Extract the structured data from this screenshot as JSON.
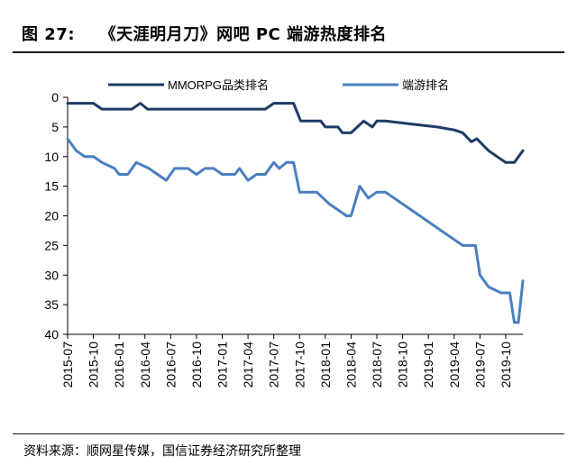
{
  "header": {
    "figure_label": "图 27:",
    "title": "《天涯明月刀》网吧 PC 端游热度排名"
  },
  "footer": {
    "source": "资料来源：顺网星传媒，国信证券经济研究所整理"
  },
  "chart_data": {
    "type": "line",
    "title": "",
    "xlabel": "",
    "ylabel": "",
    "y_inverted": true,
    "ylim": [
      0,
      40
    ],
    "yticks": [
      0,
      5,
      10,
      15,
      20,
      25,
      30,
      35,
      40
    ],
    "x_tick_labels": [
      "2015-07",
      "2015-10",
      "2016-01",
      "2016-04",
      "2016-07",
      "2016-10",
      "2017-01",
      "2017-04",
      "2017-07",
      "2017-10",
      "2018-01",
      "2018-04",
      "2018-07",
      "2018-10",
      "2019-01",
      "2019-04",
      "2019-07",
      "2019-10"
    ],
    "x_range_months": [
      "2015-07",
      "2019-12"
    ],
    "legend_position": "top",
    "grid": false,
    "series": [
      {
        "name": "MMORPG品类排名",
        "color": "#1f3b64",
        "points": [
          [
            "2015-07-01",
            1
          ],
          [
            "2015-08-15",
            1
          ],
          [
            "2015-10-01",
            1
          ],
          [
            "2015-11-01",
            2
          ],
          [
            "2015-12-15",
            2
          ],
          [
            "2016-02-15",
            2
          ],
          [
            "2016-03-15",
            1
          ],
          [
            "2016-04-10",
            2
          ],
          [
            "2016-06-01",
            2
          ],
          [
            "2016-09-01",
            2
          ],
          [
            "2016-12-01",
            2
          ],
          [
            "2017-03-01",
            2
          ],
          [
            "2017-06-01",
            2
          ],
          [
            "2017-07-01",
            1
          ],
          [
            "2017-08-15",
            1
          ],
          [
            "2017-09-10",
            1
          ],
          [
            "2017-10-05",
            4
          ],
          [
            "2017-11-15",
            4
          ],
          [
            "2017-12-15",
            4
          ],
          [
            "2018-01-01",
            5
          ],
          [
            "2018-02-15",
            5
          ],
          [
            "2018-03-01",
            6
          ],
          [
            "2018-04-01",
            6
          ],
          [
            "2018-05-15",
            4
          ],
          [
            "2018-06-15",
            5
          ],
          [
            "2018-07-01",
            4
          ],
          [
            "2018-08-01",
            4
          ],
          [
            "2018-11-01",
            4.5
          ],
          [
            "2019-02-01",
            5
          ],
          [
            "2019-04-01",
            5.5
          ],
          [
            "2019-05-01",
            6
          ],
          [
            "2019-06-01",
            7.5
          ],
          [
            "2019-06-20",
            7
          ],
          [
            "2019-08-01",
            9
          ],
          [
            "2019-09-01",
            10
          ],
          [
            "2019-10-01",
            11
          ],
          [
            "2019-11-01",
            11
          ],
          [
            "2019-12-01",
            9
          ]
        ]
      },
      {
        "name": "端游排名",
        "color": "#4a7fbf",
        "points": [
          [
            "2015-07-01",
            7
          ],
          [
            "2015-08-01",
            9
          ],
          [
            "2015-09-01",
            10
          ],
          [
            "2015-10-01",
            10
          ],
          [
            "2015-11-01",
            11
          ],
          [
            "2015-12-15",
            12
          ],
          [
            "2016-01-01",
            13
          ],
          [
            "2016-02-01",
            13
          ],
          [
            "2016-03-01",
            11
          ],
          [
            "2016-04-15",
            12
          ],
          [
            "2016-05-15",
            13
          ],
          [
            "2016-06-15",
            14
          ],
          [
            "2016-07-15",
            12
          ],
          [
            "2016-09-01",
            12
          ],
          [
            "2016-10-01",
            13
          ],
          [
            "2016-11-01",
            12
          ],
          [
            "2016-12-01",
            12
          ],
          [
            "2017-01-01",
            13
          ],
          [
            "2017-02-15",
            13
          ],
          [
            "2017-03-01",
            12
          ],
          [
            "2017-04-01",
            14
          ],
          [
            "2017-05-01",
            13
          ],
          [
            "2017-06-01",
            13
          ],
          [
            "2017-07-01",
            11
          ],
          [
            "2017-07-20",
            12
          ],
          [
            "2017-08-15",
            11
          ],
          [
            "2017-09-10",
            11
          ],
          [
            "2017-10-01",
            16
          ],
          [
            "2017-11-01",
            16
          ],
          [
            "2017-12-01",
            16
          ],
          [
            "2018-01-15",
            18
          ],
          [
            "2018-02-15",
            19
          ],
          [
            "2018-03-15",
            20
          ],
          [
            "2018-04-01",
            20
          ],
          [
            "2018-05-01",
            15
          ],
          [
            "2018-06-01",
            17
          ],
          [
            "2018-07-01",
            16
          ],
          [
            "2018-08-01",
            16
          ],
          [
            "2018-11-01",
            19
          ],
          [
            "2019-02-01",
            22
          ],
          [
            "2019-05-01",
            25
          ],
          [
            "2019-06-15",
            25
          ],
          [
            "2019-07-01",
            30
          ],
          [
            "2019-08-01",
            32
          ],
          [
            "2019-09-15",
            33
          ],
          [
            "2019-10-15",
            33
          ],
          [
            "2019-11-01",
            38
          ],
          [
            "2019-11-15",
            38
          ],
          [
            "2019-12-01",
            31
          ]
        ]
      }
    ]
  }
}
